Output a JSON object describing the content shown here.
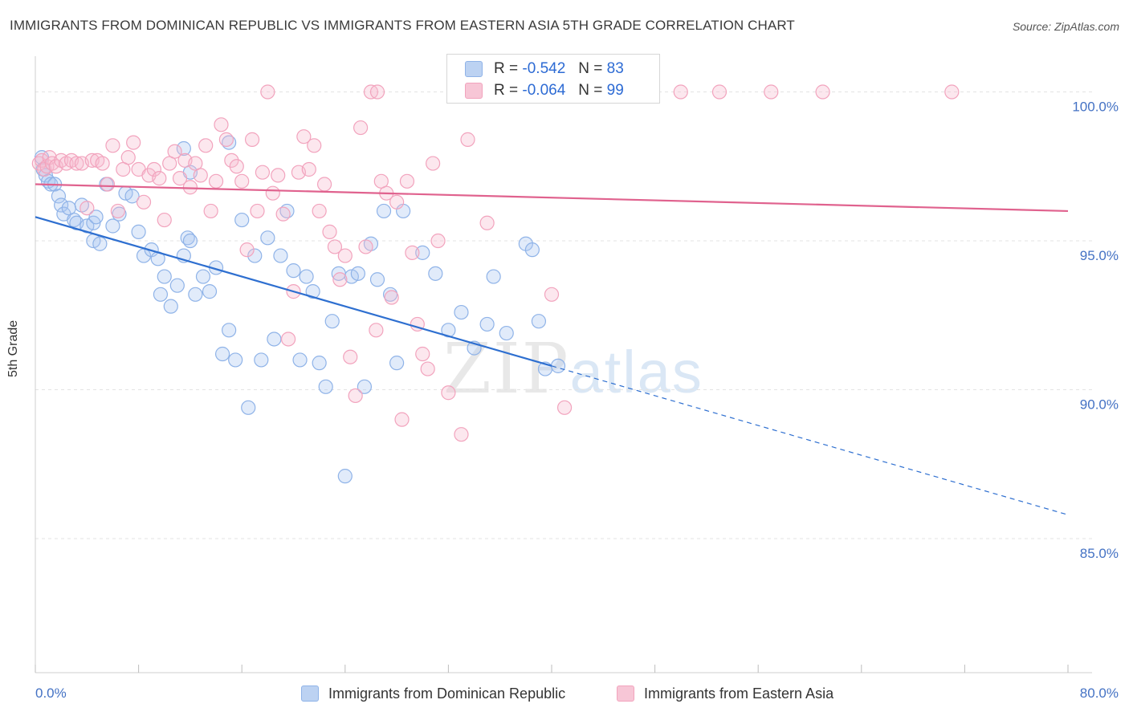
{
  "title": "IMMIGRANTS FROM DOMINICAN REPUBLIC VS IMMIGRANTS FROM EASTERN ASIA 5TH GRADE CORRELATION CHART",
  "source": "Source: ZipAtlas.com",
  "watermark": {
    "zip": "ZIP",
    "atlas": "atlas"
  },
  "colors": {
    "blue": "#8fb3e8",
    "blue_line": "#2e6fd0",
    "pink": "#f2a3bd",
    "pink_line": "#e0628e"
  },
  "legend": {
    "rows": [
      {
        "r_label": "R =",
        "r_value": "-0.542",
        "n_label": "N =",
        "n_value": "83"
      },
      {
        "r_label": "R =",
        "r_value": "-0.064",
        "n_label": "N =",
        "n_value": "99"
      }
    ]
  },
  "chart_data": {
    "type": "scatter",
    "title": "IMMIGRANTS FROM DOMINICAN REPUBLIC VS IMMIGRANTS FROM EASTERN ASIA 5TH GRADE CORRELATION CHART",
    "xlabel": "",
    "ylabel": "5th Grade",
    "xlim": [
      0,
      80
    ],
    "ylim": [
      80.5,
      101.2
    ],
    "x_tick_labels": [
      "0.0%",
      "80.0%"
    ],
    "y_ticks": [
      100,
      95,
      90,
      85
    ],
    "y_tick_labels": [
      "100.0%",
      "95.0%",
      "90.0%",
      "85.0%"
    ],
    "grid": true,
    "legend_position": "bottom",
    "series": [
      {
        "name": "Immigrants from Dominican Republic",
        "color": "#8fb3e8",
        "trend": {
          "x": [
            0,
            40
          ],
          "y": [
            95.8,
            90.8
          ],
          "dashed_to": [
            80,
            85.8
          ]
        },
        "points": [
          [
            0.5,
            97.8
          ],
          [
            0.6,
            97.4
          ],
          [
            0.8,
            97.2
          ],
          [
            1.0,
            97.0
          ],
          [
            1.2,
            96.9
          ],
          [
            1.5,
            96.9
          ],
          [
            1.8,
            96.5
          ],
          [
            2.0,
            96.2
          ],
          [
            2.2,
            95.9
          ],
          [
            2.6,
            96.1
          ],
          [
            3.0,
            95.7
          ],
          [
            3.2,
            95.6
          ],
          [
            3.6,
            96.2
          ],
          [
            4.0,
            95.5
          ],
          [
            4.5,
            95.6
          ],
          [
            4.5,
            95.0
          ],
          [
            5.0,
            94.9
          ],
          [
            5.5,
            96.9
          ],
          [
            6.0,
            95.5
          ],
          [
            6.5,
            95.9
          ],
          [
            7.0,
            96.6
          ],
          [
            7.5,
            96.5
          ],
          [
            8.0,
            95.3
          ],
          [
            8.4,
            94.5
          ],
          [
            9.0,
            94.7
          ],
          [
            9.5,
            94.4
          ],
          [
            9.7,
            93.2
          ],
          [
            10.0,
            93.8
          ],
          [
            10.5,
            92.8
          ],
          [
            11.0,
            93.5
          ],
          [
            11.5,
            94.5
          ],
          [
            11.8,
            95.1
          ],
          [
            12.0,
            95.0
          ],
          [
            12.4,
            93.2
          ],
          [
            13.0,
            93.8
          ],
          [
            13.5,
            93.3
          ],
          [
            14.0,
            94.1
          ],
          [
            14.5,
            91.2
          ],
          [
            15.0,
            92.0
          ],
          [
            15.5,
            91.0
          ],
          [
            11.5,
            98.1
          ],
          [
            12.0,
            97.3
          ],
          [
            16.0,
            95.7
          ],
          [
            16.5,
            89.4
          ],
          [
            17.0,
            94.5
          ],
          [
            17.5,
            91.0
          ],
          [
            18.0,
            95.1
          ],
          [
            18.5,
            91.7
          ],
          [
            19.0,
            94.5
          ],
          [
            19.5,
            96.0
          ],
          [
            20.0,
            94.0
          ],
          [
            20.5,
            91.0
          ],
          [
            21.0,
            93.8
          ],
          [
            21.5,
            93.3
          ],
          [
            22.0,
            90.9
          ],
          [
            22.5,
            90.1
          ],
          [
            23.0,
            92.3
          ],
          [
            23.5,
            93.9
          ],
          [
            24.0,
            87.1
          ],
          [
            24.5,
            93.8
          ],
          [
            25.0,
            93.9
          ],
          [
            25.5,
            90.1
          ],
          [
            26.0,
            94.9
          ],
          [
            26.5,
            93.7
          ],
          [
            27.0,
            96.0
          ],
          [
            27.5,
            93.2
          ],
          [
            28.0,
            90.9
          ],
          [
            28.5,
            96.0
          ],
          [
            30.0,
            94.6
          ],
          [
            31.0,
            93.9
          ],
          [
            32.0,
            92.0
          ],
          [
            33.0,
            92.6
          ],
          [
            34.0,
            91.4
          ],
          [
            35.0,
            92.2
          ],
          [
            35.5,
            93.8
          ],
          [
            36.5,
            91.9
          ],
          [
            38.0,
            94.9
          ],
          [
            38.5,
            94.7
          ],
          [
            39.0,
            92.3
          ],
          [
            39.5,
            90.7
          ],
          [
            40.5,
            90.8
          ],
          [
            4.7,
            95.8
          ],
          [
            15.0,
            98.3
          ]
        ]
      },
      {
        "name": "Immigrants from Eastern Asia",
        "color": "#f2a3bd",
        "trend": {
          "x": [
            0,
            80
          ],
          "y": [
            96.9,
            96.0
          ]
        },
        "points": [
          [
            0.3,
            97.6
          ],
          [
            0.5,
            97.7
          ],
          [
            0.7,
            97.4
          ],
          [
            0.9,
            97.5
          ],
          [
            1.1,
            97.8
          ],
          [
            1.3,
            97.6
          ],
          [
            1.6,
            97.5
          ],
          [
            2.0,
            97.7
          ],
          [
            2.4,
            97.6
          ],
          [
            2.8,
            97.7
          ],
          [
            3.2,
            97.6
          ],
          [
            3.6,
            97.6
          ],
          [
            4.0,
            96.1
          ],
          [
            4.4,
            97.7
          ],
          [
            4.8,
            97.7
          ],
          [
            5.2,
            97.6
          ],
          [
            5.6,
            96.9
          ],
          [
            6.0,
            98.2
          ],
          [
            6.4,
            96.0
          ],
          [
            6.8,
            97.4
          ],
          [
            7.2,
            97.8
          ],
          [
            7.6,
            98.3
          ],
          [
            8.0,
            97.4
          ],
          [
            8.4,
            96.3
          ],
          [
            8.8,
            97.2
          ],
          [
            9.2,
            97.4
          ],
          [
            9.6,
            97.1
          ],
          [
            10.0,
            95.7
          ],
          [
            10.4,
            97.6
          ],
          [
            10.8,
            98.0
          ],
          [
            11.2,
            97.1
          ],
          [
            11.6,
            97.7
          ],
          [
            12.0,
            96.8
          ],
          [
            12.4,
            97.6
          ],
          [
            12.8,
            97.2
          ],
          [
            13.2,
            98.2
          ],
          [
            13.6,
            96.0
          ],
          [
            14.0,
            97.0
          ],
          [
            14.4,
            98.9
          ],
          [
            14.8,
            98.4
          ],
          [
            15.2,
            97.7
          ],
          [
            15.6,
            97.5
          ],
          [
            16.0,
            97.0
          ],
          [
            16.4,
            94.7
          ],
          [
            16.8,
            98.4
          ],
          [
            17.2,
            96.0
          ],
          [
            17.6,
            97.3
          ],
          [
            18.0,
            100.0
          ],
          [
            18.4,
            96.6
          ],
          [
            18.8,
            97.2
          ],
          [
            19.2,
            95.9
          ],
          [
            19.6,
            91.7
          ],
          [
            20.0,
            93.3
          ],
          [
            20.4,
            97.3
          ],
          [
            20.8,
            98.5
          ],
          [
            21.2,
            97.4
          ],
          [
            21.6,
            98.2
          ],
          [
            22.0,
            96.0
          ],
          [
            22.4,
            96.9
          ],
          [
            22.8,
            95.3
          ],
          [
            23.2,
            94.8
          ],
          [
            23.6,
            93.7
          ],
          [
            24.0,
            94.5
          ],
          [
            24.4,
            91.1
          ],
          [
            24.8,
            89.8
          ],
          [
            25.2,
            98.8
          ],
          [
            25.6,
            94.8
          ],
          [
            26.0,
            100.0
          ],
          [
            26.4,
            92.0
          ],
          [
            26.8,
            97.0
          ],
          [
            27.2,
            96.6
          ],
          [
            27.6,
            93.1
          ],
          [
            28.0,
            96.3
          ],
          [
            28.4,
            89.0
          ],
          [
            28.8,
            97.0
          ],
          [
            29.2,
            94.6
          ],
          [
            29.6,
            92.2
          ],
          [
            30.0,
            91.2
          ],
          [
            30.4,
            90.7
          ],
          [
            30.8,
            97.6
          ],
          [
            31.2,
            95.0
          ],
          [
            32.0,
            89.9
          ],
          [
            33.0,
            88.5
          ],
          [
            33.5,
            98.4
          ],
          [
            35.0,
            95.6
          ],
          [
            39.0,
            100.0
          ],
          [
            40.0,
            93.2
          ],
          [
            41.0,
            89.4
          ],
          [
            44.0,
            100.0
          ],
          [
            53.0,
            100.0
          ],
          [
            61.0,
            100.0
          ],
          [
            71.0,
            100.0
          ],
          [
            57.0,
            100.0
          ],
          [
            50.0,
            100.0
          ],
          [
            36.0,
            100.0
          ],
          [
            45.0,
            100.0
          ],
          [
            26.5,
            100.0
          ],
          [
            35.5,
            100.0
          ],
          [
            38.5,
            100.0
          ]
        ]
      }
    ]
  },
  "bottom_legend": [
    {
      "label": "Immigrants from Dominican Republic"
    },
    {
      "label": "Immigrants from Eastern Asia"
    }
  ]
}
